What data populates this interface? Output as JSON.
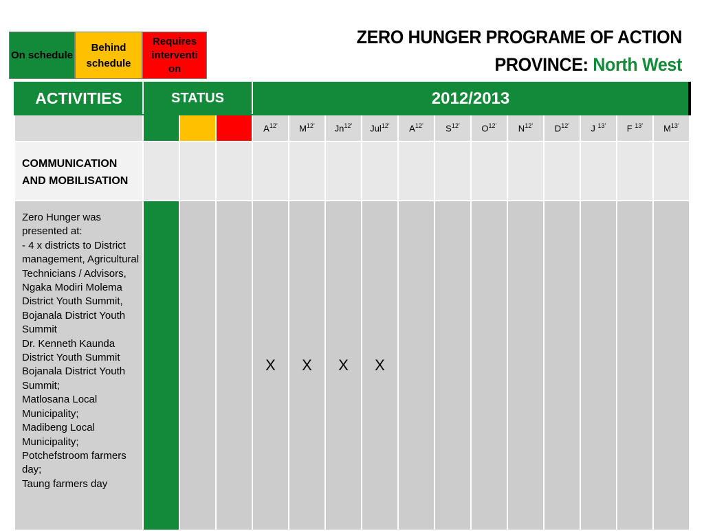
{
  "legend": {
    "on_schedule": "On schedule",
    "behind_schedule": "Behind schedule",
    "requires_intervention": "Requires interventi on",
    "colors": {
      "on": "#138a3a",
      "behind": "#ffc000",
      "requires": "#ff0000"
    }
  },
  "title": {
    "line1": "ZERO HUNGER PROGRAME OF ACTION",
    "province_label": "PROVINCE:",
    "province_name": "North West"
  },
  "table": {
    "headers": {
      "activities": "ACTIVITIES",
      "status": "STATUS",
      "period": "2012/2013"
    },
    "months": [
      {
        "m": "A",
        "y": "12’"
      },
      {
        "m": "M",
        "y": "12’"
      },
      {
        "m": "Jn",
        "y": "12’"
      },
      {
        "m": "Jul",
        "y": "12’"
      },
      {
        "m": "A",
        "y": "12’"
      },
      {
        "m": "S",
        "y": "12’"
      },
      {
        "m": "O",
        "y": "12’"
      },
      {
        "m": "N",
        "y": "12’"
      },
      {
        "m": "D",
        "y": "12’"
      },
      {
        "m": "J ",
        "y": "13’"
      },
      {
        "m": "F ",
        "y": "13’"
      },
      {
        "m": "M",
        "y": "13’"
      }
    ],
    "section": "COMMUNICATION AND MOBILISATION",
    "activity_lines": [
      "Zero Hunger was presented at:",
      "- 4 x districts to District management, Agricultural Technicians / Advisors, Ngaka Modiri Molema District  Youth Summit,",
      "Bojanala District Youth Summit",
      "Dr. Kenneth Kaunda District Youth Summit",
      "Bojanala District Youth Summit;",
      "Matlosana Local Municipality;",
      "Madibeng Local Municipality;",
      "Potchefstroom farmers day;",
      "Taung farmers day"
    ],
    "status": "on_schedule",
    "marks": [
      "X",
      "X",
      "X",
      "X",
      "",
      "",
      "",
      "",
      "",
      "",
      "",
      ""
    ]
  }
}
